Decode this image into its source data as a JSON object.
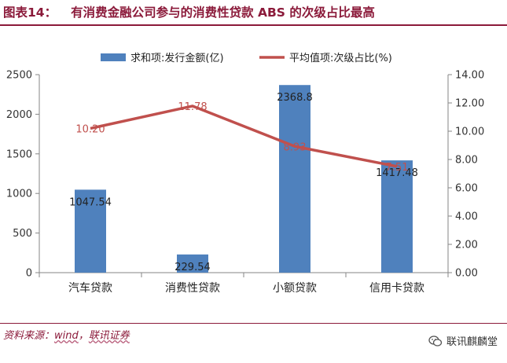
{
  "header": {
    "figure_label": "图表14：",
    "title": "有消费金融公司参与的消费性贷款 ABS 的次级占比最高"
  },
  "footer": {
    "source_prefix": "资料来源：",
    "source_name": "wind",
    "source_sep": "，",
    "source_broker": "联讯证券",
    "watermark": "联讯麒麟堂"
  },
  "colors": {
    "bar": "#4f81bd",
    "line": "#c0504d",
    "accent": "#8b1a3a"
  },
  "chart_data": {
    "type": "bar",
    "categories": [
      "汽车贷款",
      "消费性贷款",
      "小额贷款",
      "信用卡贷款"
    ],
    "series": [
      {
        "name": "求和项:发行金额(亿)",
        "type": "bar",
        "axis": "left",
        "values": [
          1047.54,
          229.54,
          2368.8,
          1417.48
        ],
        "labels": [
          "1047.54",
          "229.54",
          "2368.8",
          "1417.48"
        ]
      },
      {
        "name": "平均值项:次级占比(%)",
        "type": "line",
        "axis": "right",
        "values": [
          10.2,
          11.78,
          8.93,
          7.51
        ],
        "labels": [
          "10.20",
          "11.78",
          "8.93",
          "7.51"
        ]
      }
    ],
    "y_left": {
      "min": 0,
      "max": 2500,
      "ticks": [
        "0",
        "500",
        "1000",
        "1500",
        "2000",
        "2500"
      ]
    },
    "y_right": {
      "min": 0,
      "max": 14,
      "ticks": [
        "0.00",
        "2.00",
        "4.00",
        "6.00",
        "8.00",
        "10.00",
        "12.00",
        "14.00"
      ]
    },
    "grid": false,
    "legend": "top"
  }
}
